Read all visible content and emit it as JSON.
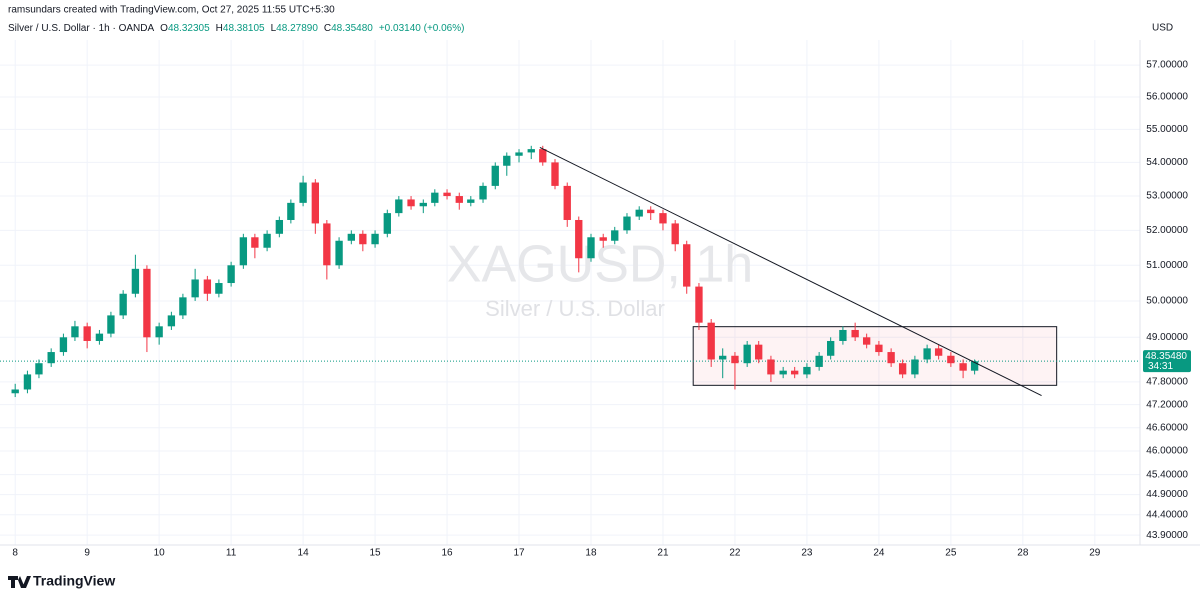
{
  "chart_data": {
    "type": "candlestick",
    "attribution": "ramsundars created with TradingView.com, Oct 27, 2025 11:55 UTC+5:30",
    "symbol_info": "Silver / U.S. Dollar · 1h · OANDA",
    "ohlc_legend": [
      {
        "label": "O",
        "value": "48.32305"
      },
      {
        "label": "H",
        "value": "48.38105"
      },
      {
        "label": "L",
        "value": "48.27890"
      },
      {
        "label": "C",
        "value": "48.35480"
      }
    ],
    "change": "+0.03140 (+0.06%)",
    "currency": "USD",
    "watermark": [
      "XAGUSD, 1h",
      "Silver / U.S. Dollar"
    ],
    "brand": "TradingView",
    "last_price": {
      "value": 48.3548,
      "label": "48.35480"
    },
    "countdown": "34:31",
    "up_color": "#089981",
    "down_color": "#f23645",
    "log_scale": true,
    "grid": true,
    "xlim": [
      -0.1,
      15.6
    ],
    "ylim": [
      43.66,
      57.8
    ],
    "xticks": [
      {
        "value": 0,
        "label": "8"
      },
      {
        "value": 1,
        "label": "9"
      },
      {
        "value": 2,
        "label": "10"
      },
      {
        "value": 3,
        "label": "11"
      },
      {
        "value": 4,
        "label": "14"
      },
      {
        "value": 5,
        "label": "15"
      },
      {
        "value": 6,
        "label": "16"
      },
      {
        "value": 7,
        "label": "17"
      },
      {
        "value": 8,
        "label": "18"
      },
      {
        "value": 9,
        "label": "21"
      },
      {
        "value": 10,
        "label": "22"
      },
      {
        "value": 11,
        "label": "23"
      },
      {
        "value": 12,
        "label": "24"
      },
      {
        "value": 13,
        "label": "25"
      },
      {
        "value": 14,
        "label": "28"
      },
      {
        "value": 15,
        "label": "29"
      }
    ],
    "yticks": [
      {
        "value": 57,
        "label": "57.00000"
      },
      {
        "value": 56,
        "label": "56.00000"
      },
      {
        "value": 55,
        "label": "55.00000"
      },
      {
        "value": 54,
        "label": "54.00000"
      },
      {
        "value": 53,
        "label": "53.00000"
      },
      {
        "value": 52,
        "label": "52.00000"
      },
      {
        "value": 51,
        "label": "51.00000"
      },
      {
        "value": 50,
        "label": "50.00000"
      },
      {
        "value": 49,
        "label": "49.00000"
      },
      {
        "value": 47.8,
        "label": "47.80000"
      },
      {
        "value": 47.2,
        "label": "47.20000"
      },
      {
        "value": 46.6,
        "label": "46.60000"
      },
      {
        "value": 46,
        "label": "46.00000"
      },
      {
        "value": 45.4,
        "label": "45.40000"
      },
      {
        "value": 44.9,
        "label": "44.90000"
      },
      {
        "value": 44.4,
        "label": "44.40000"
      },
      {
        "value": 43.9,
        "label": "43.90000"
      }
    ],
    "x": [
      0,
      0.17,
      0.33,
      0.5,
      0.67,
      0.83,
      1,
      1.17,
      1.33,
      1.5,
      1.67,
      1.83,
      2,
      2.17,
      2.33,
      2.5,
      2.67,
      2.83,
      3,
      3.17,
      3.33,
      3.5,
      3.67,
      3.83,
      4,
      4.17,
      4.33,
      4.5,
      4.67,
      4.83,
      5,
      5.17,
      5.33,
      5.5,
      5.67,
      5.83,
      6,
      6.17,
      6.33,
      6.5,
      6.67,
      6.83,
      7,
      7.17,
      7.33,
      7.5,
      7.67,
      7.83,
      8,
      8.17,
      8.33,
      8.5,
      8.67,
      8.83,
      9,
      9.17,
      9.33,
      9.5,
      9.67,
      9.83,
      10,
      10.17,
      10.33,
      10.5,
      10.67,
      10.83,
      11,
      11.17,
      11.33,
      11.5,
      11.67,
      11.83,
      12,
      12.17,
      12.33,
      12.5,
      12.67,
      12.83,
      13,
      13.17,
      13.33
    ],
    "open": [
      47.5,
      47.6,
      48.0,
      48.3,
      48.6,
      49.0,
      49.3,
      48.9,
      49.1,
      49.6,
      50.2,
      50.9,
      49.0,
      49.3,
      49.6,
      50.1,
      50.6,
      50.2,
      50.5,
      51.0,
      51.8,
      51.5,
      51.9,
      52.3,
      52.8,
      53.4,
      52.2,
      51.0,
      51.7,
      51.9,
      51.6,
      51.9,
      52.5,
      52.9,
      52.7,
      52.8,
      53.1,
      53.0,
      52.8,
      52.9,
      53.3,
      53.9,
      54.2,
      54.3,
      54.4,
      54.0,
      53.3,
      52.3,
      51.2,
      51.8,
      51.7,
      52.0,
      52.4,
      52.6,
      52.5,
      52.2,
      51.6,
      50.4,
      49.4,
      48.4,
      48.5,
      48.3,
      48.8,
      48.4,
      48.0,
      48.1,
      48.0,
      48.2,
      48.5,
      48.9,
      49.2,
      49.0,
      48.8,
      48.6,
      48.3,
      48.0,
      48.4,
      48.7,
      48.5,
      48.3,
      48.1
    ],
    "high": [
      47.75,
      48.1,
      48.4,
      48.7,
      49.1,
      49.45,
      49.4,
      49.2,
      49.7,
      50.3,
      51.3,
      51.0,
      49.4,
      49.7,
      50.2,
      50.9,
      50.7,
      50.6,
      51.1,
      51.9,
      51.9,
      52.0,
      52.4,
      52.9,
      53.6,
      53.5,
      52.3,
      51.8,
      52.0,
      52.0,
      52.0,
      52.6,
      53.0,
      53.0,
      52.9,
      53.2,
      53.2,
      53.1,
      53.0,
      53.4,
      54.0,
      54.3,
      54.4,
      54.5,
      54.5,
      54.1,
      53.4,
      52.4,
      51.9,
      51.9,
      52.1,
      52.5,
      52.7,
      52.7,
      52.6,
      52.3,
      51.7,
      50.5,
      49.5,
      48.7,
      48.6,
      48.9,
      48.9,
      48.5,
      48.2,
      48.2,
      48.3,
      48.6,
      49.0,
      49.3,
      49.4,
      49.1,
      48.9,
      48.7,
      48.4,
      48.5,
      48.8,
      48.8,
      48.6,
      48.4,
      48.4
    ],
    "low": [
      47.4,
      47.5,
      47.9,
      48.2,
      48.5,
      48.9,
      48.7,
      48.8,
      49.0,
      49.5,
      50.1,
      48.6,
      48.8,
      49.2,
      49.5,
      50.0,
      50.0,
      50.1,
      50.4,
      50.9,
      51.2,
      51.4,
      51.8,
      52.2,
      52.7,
      51.9,
      50.6,
      50.9,
      51.6,
      51.4,
      51.5,
      51.8,
      52.4,
      52.6,
      52.5,
      52.7,
      52.9,
      52.6,
      52.7,
      52.8,
      53.2,
      53.6,
      54.0,
      54.1,
      53.9,
      53.2,
      52.1,
      50.8,
      51.1,
      51.5,
      51.6,
      51.9,
      52.3,
      52.3,
      52.0,
      51.4,
      50.2,
      49.2,
      48.2,
      47.9,
      47.6,
      48.2,
      48.3,
      47.8,
      47.9,
      47.9,
      47.9,
      48.1,
      48.4,
      48.8,
      48.9,
      48.7,
      48.5,
      48.2,
      47.9,
      47.9,
      48.3,
      48.4,
      48.2,
      47.9,
      48.0
    ],
    "close": [
      47.6,
      48.0,
      48.3,
      48.6,
      49.0,
      49.3,
      48.9,
      49.1,
      49.6,
      50.2,
      50.9,
      49.0,
      49.3,
      49.6,
      50.1,
      50.6,
      50.2,
      50.5,
      51.0,
      51.8,
      51.5,
      51.9,
      52.3,
      52.8,
      53.4,
      52.2,
      51.0,
      51.7,
      51.9,
      51.6,
      51.9,
      52.5,
      52.9,
      52.7,
      52.8,
      53.1,
      53.0,
      52.8,
      52.9,
      53.3,
      53.9,
      54.2,
      54.3,
      54.4,
      54.0,
      53.3,
      52.3,
      51.2,
      51.8,
      51.7,
      52.0,
      52.4,
      52.6,
      52.5,
      52.2,
      51.6,
      50.4,
      49.4,
      48.4,
      48.5,
      48.3,
      48.8,
      48.4,
      48.0,
      48.1,
      48.0,
      48.2,
      48.5,
      48.9,
      49.2,
      49.0,
      48.8,
      48.6,
      48.3,
      48.0,
      48.4,
      48.7,
      48.5,
      48.3,
      48.1,
      48.35
    ],
    "trendline": {
      "x": [
        7.29,
        14.26
      ],
      "y": [
        54.45,
        47.44
      ]
    },
    "range_box": {
      "x": [
        9.42,
        14.47
      ],
      "y": [
        47.71,
        49.29
      ]
    }
  }
}
